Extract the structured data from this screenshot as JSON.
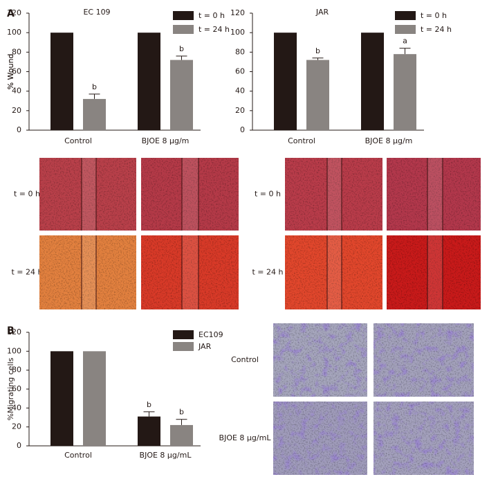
{
  "panels": [
    "A",
    "B"
  ],
  "chart_data": [
    {
      "type": "bar",
      "title": "EC 109",
      "y_label": "% Wound",
      "categories": [
        "Control",
        "BJOE 8 μg/m"
      ],
      "series": [
        {
          "name": "t = 0 h",
          "color": "#231815",
          "values": [
            100,
            100
          ]
        },
        {
          "name": "t = 24 h",
          "color": "#898481",
          "values": [
            32,
            72
          ],
          "errors": [
            5,
            4
          ],
          "annotations": [
            "b",
            "b"
          ]
        }
      ],
      "ylim": [
        0,
        120
      ],
      "yticks": [
        0,
        20,
        40,
        60,
        80,
        100,
        120
      ]
    },
    {
      "type": "bar",
      "title": "JAR",
      "y_label": "% Wound",
      "categories": [
        "Control",
        "BJOE 8 μg/m"
      ],
      "series": [
        {
          "name": "t = 0 h",
          "color": "#231815",
          "values": [
            100,
            100
          ]
        },
        {
          "name": "t = 24 h",
          "color": "#898481",
          "values": [
            72,
            78
          ],
          "errors": [
            2,
            6
          ],
          "annotations": [
            "b",
            "a"
          ]
        }
      ],
      "ylim": [
        0,
        120
      ],
      "yticks": [
        0,
        20,
        40,
        60,
        80,
        100,
        120
      ]
    },
    {
      "type": "bar",
      "y_label": "%Migrating cells",
      "categories": [
        "Control",
        "BJOE 8 μg/mL"
      ],
      "series": [
        {
          "name": "EC109",
          "color": "#231815",
          "values": [
            100,
            31
          ],
          "errors": [
            null,
            5
          ],
          "annotations": [
            null,
            "b"
          ]
        },
        {
          "name": "JAR",
          "color": "#898481",
          "values": [
            100,
            22
          ],
          "errors": [
            null,
            6
          ],
          "annotations": [
            null,
            "b"
          ]
        }
      ],
      "ylim": [
        0,
        120
      ],
      "yticks": [
        0,
        20,
        40,
        60,
        80,
        100,
        120
      ]
    }
  ],
  "images": [
    {
      "rows": [
        "t = 0 h",
        "t = 24 h"
      ]
    },
    {
      "rows": [
        "t = 0 h",
        "t = 24 h"
      ]
    },
    {
      "rows": [
        "Control",
        "BJOE 8 μg/mL"
      ]
    }
  ]
}
